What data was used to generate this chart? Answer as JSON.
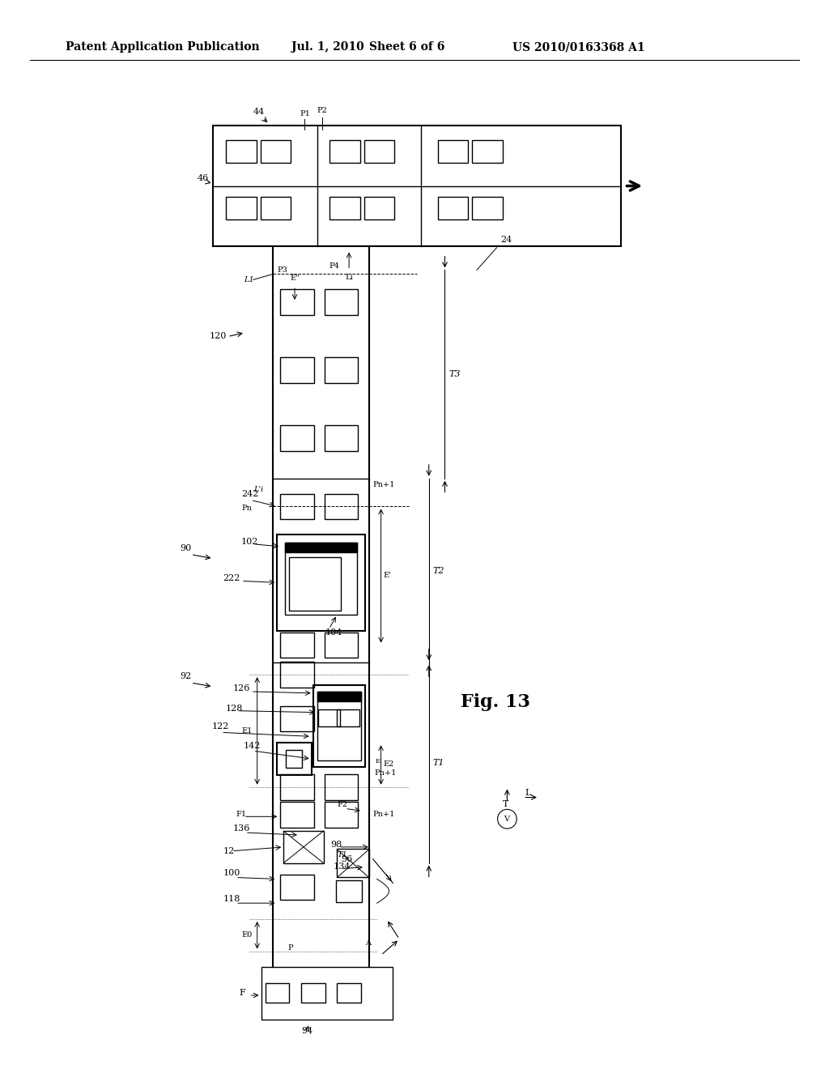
{
  "bg_color": "#ffffff",
  "header_text": "Patent Application Publication",
  "header_date": "Jul. 1, 2010",
  "header_sheet": "Sheet 6 of 6",
  "header_patent": "US 2010/0163368 A1",
  "fig_label": "Fig. 13",
  "title_fontsize": 10,
  "body_fontsize": 8
}
